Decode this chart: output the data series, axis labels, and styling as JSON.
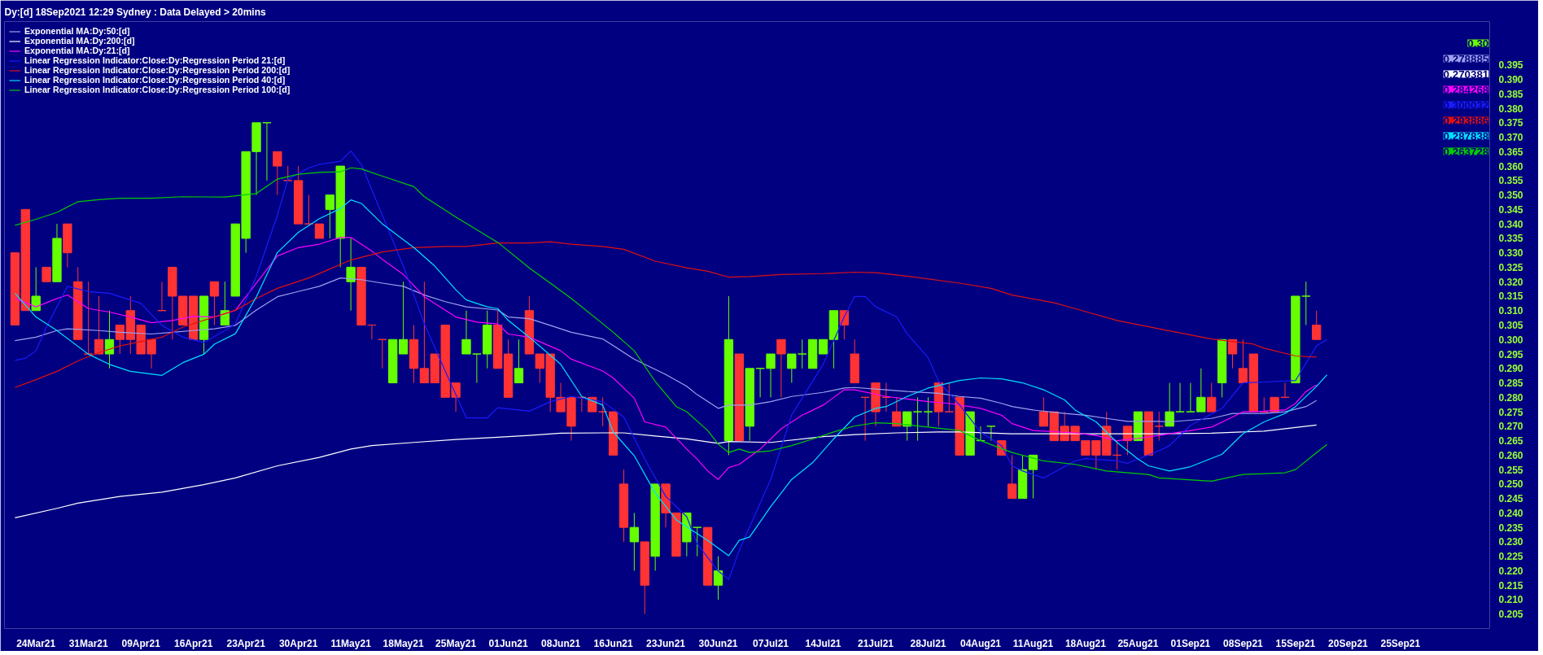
{
  "chart_data": {
    "type": "candlestick",
    "title": "Dy:[d]  18Sep2021 12:29 Sydney : Data Delayed > 20mins",
    "categories": [
      null,
      null,
      "24Mar21",
      null,
      null,
      null,
      null,
      "31Mar21",
      null,
      null,
      null,
      null,
      "09Apr21",
      null,
      null,
      null,
      null,
      "16Apr21",
      null,
      null,
      null,
      null,
      "23Apr21",
      null,
      null,
      null,
      null,
      "30Apr21",
      null,
      null,
      null,
      null,
      "11May21",
      null,
      null,
      null,
      null,
      "18May21",
      null,
      null,
      null,
      null,
      "25May21",
      null,
      null,
      null,
      null,
      "01Jun21",
      null,
      null,
      null,
      null,
      "08Jun21",
      null,
      null,
      null,
      null,
      "16Jun21",
      null,
      null,
      null,
      null,
      "23Jun21",
      null,
      null,
      null,
      null,
      "30Jun21",
      null,
      null,
      null,
      null,
      "07Jul21",
      null,
      null,
      null,
      null,
      "14Jul21",
      null,
      null,
      null,
      null,
      "21Jul21",
      null,
      null,
      null,
      null,
      "28Jul21",
      null,
      null,
      null,
      null,
      "04Aug21",
      null,
      null,
      null,
      null,
      "11Aug21",
      null,
      null,
      null,
      null,
      "18Aug21",
      null,
      null,
      null,
      null,
      "25Aug21",
      null,
      null,
      null,
      null,
      "01Sep21",
      null,
      null,
      null,
      null,
      "08Sep21",
      null,
      null,
      null,
      null,
      "15Sep21",
      null,
      null,
      null,
      null,
      "20Sep21",
      null,
      null,
      null,
      null,
      "25Sep21",
      null,
      null,
      null,
      null,
      null,
      null,
      null,
      null
    ],
    "ohlc": [
      [
        0.33,
        0.33,
        0.305,
        0.305
      ],
      [
        0.345,
        0.345,
        0.31,
        0.31
      ],
      [
        0.31,
        0.325,
        0.31,
        0.315
      ],
      [
        0.325,
        0.325,
        0.32,
        0.32
      ],
      [
        0.32,
        0.34,
        0.32,
        0.335
      ],
      [
        0.34,
        0.34,
        0.325,
        0.33
      ],
      [
        0.32,
        0.325,
        0.3,
        0.3
      ],
      [
        0.295,
        0.32,
        0.295,
        0.295
      ],
      [
        0.3,
        0.315,
        0.295,
        0.295
      ],
      [
        0.295,
        0.31,
        0.29,
        0.3
      ],
      [
        0.305,
        0.305,
        0.295,
        0.3
      ],
      [
        0.31,
        0.315,
        0.295,
        0.3
      ],
      [
        0.305,
        0.305,
        0.295,
        0.295
      ],
      [
        0.3,
        0.3,
        0.29,
        0.295
      ],
      [
        0.31,
        0.32,
        0.31,
        0.31
      ],
      [
        0.325,
        0.325,
        0.3,
        0.315
      ],
      [
        0.315,
        0.315,
        0.305,
        0.305
      ],
      [
        0.315,
        0.315,
        0.3,
        0.3
      ],
      [
        0.3,
        0.315,
        0.295,
        0.315
      ],
      [
        0.32,
        0.32,
        0.305,
        0.315
      ],
      [
        0.305,
        0.32,
        0.305,
        0.31
      ],
      [
        0.315,
        0.34,
        0.315,
        0.34
      ],
      [
        0.335,
        0.365,
        0.33,
        0.365
      ],
      [
        0.365,
        0.375,
        0.35,
        0.375
      ],
      [
        0.375,
        0.375,
        0.355,
        0.375
      ],
      [
        0.365,
        0.365,
        0.35,
        0.36
      ],
      [
        0.355,
        0.36,
        0.355,
        0.355
      ],
      [
        0.355,
        0.36,
        0.34,
        0.34
      ],
      [
        0.34,
        0.35,
        0.34,
        0.34
      ],
      [
        0.34,
        0.34,
        0.335,
        0.335
      ],
      [
        0.345,
        0.35,
        0.335,
        0.35
      ],
      [
        0.335,
        0.36,
        0.325,
        0.36
      ],
      [
        0.32,
        0.335,
        0.31,
        0.325
      ],
      [
        0.325,
        0.325,
        0.305,
        0.305
      ],
      [
        0.305,
        0.305,
        0.3,
        0.305
      ],
      [
        0.3,
        0.3,
        0.29,
        0.3
      ],
      [
        0.285,
        0.3,
        0.285,
        0.3
      ],
      [
        0.295,
        0.32,
        0.295,
        0.3
      ],
      [
        0.3,
        0.305,
        0.285,
        0.29
      ],
      [
        0.29,
        0.32,
        0.285,
        0.285
      ],
      [
        0.295,
        0.295,
        0.285,
        0.285
      ],
      [
        0.305,
        0.305,
        0.28,
        0.28
      ],
      [
        0.285,
        0.285,
        0.275,
        0.28
      ],
      [
        0.295,
        0.31,
        0.295,
        0.3
      ],
      [
        0.295,
        0.295,
        0.285,
        0.295
      ],
      [
        0.295,
        0.31,
        0.29,
        0.305
      ],
      [
        0.305,
        0.31,
        0.29,
        0.29
      ],
      [
        0.295,
        0.3,
        0.28,
        0.28
      ],
      [
        0.285,
        0.3,
        0.285,
        0.29
      ],
      [
        0.31,
        0.315,
        0.295,
        0.295
      ],
      [
        0.295,
        0.295,
        0.285,
        0.29
      ],
      [
        0.295,
        0.295,
        0.275,
        0.28
      ],
      [
        0.28,
        0.285,
        0.275,
        0.275
      ],
      [
        0.28,
        0.28,
        0.265,
        0.27
      ],
      [
        0.28,
        0.28,
        0.275,
        0.28
      ],
      [
        0.28,
        0.28,
        0.275,
        0.275
      ],
      [
        0.275,
        0.28,
        0.27,
        0.275
      ],
      [
        0.275,
        0.275,
        0.26,
        0.26
      ],
      [
        0.25,
        0.255,
        0.23,
        0.235
      ],
      [
        0.23,
        0.24,
        0.22,
        0.235
      ],
      [
        0.23,
        0.23,
        0.205,
        0.215
      ],
      [
        0.225,
        0.25,
        0.22,
        0.25
      ],
      [
        0.25,
        0.25,
        0.235,
        0.24
      ],
      [
        0.24,
        0.24,
        0.225,
        0.225
      ],
      [
        0.23,
        0.24,
        0.225,
        0.24
      ],
      [
        0.235,
        0.235,
        0.225,
        0.235
      ],
      [
        0.235,
        0.235,
        0.215,
        0.215
      ],
      [
        0.215,
        0.225,
        0.21,
        0.22
      ],
      [
        0.265,
        0.315,
        0.26,
        0.3
      ],
      [
        0.295,
        0.295,
        0.265,
        0.265
      ],
      [
        0.27,
        0.29,
        0.265,
        0.29
      ],
      [
        0.29,
        0.29,
        0.28,
        0.29
      ],
      [
        0.29,
        0.295,
        0.28,
        0.295
      ],
      [
        0.3,
        0.3,
        0.28,
        0.295
      ],
      [
        0.29,
        0.295,
        0.285,
        0.295
      ],
      [
        0.295,
        0.3,
        0.29,
        0.295
      ],
      [
        0.29,
        0.3,
        0.29,
        0.3
      ],
      [
        0.295,
        0.3,
        0.295,
        0.3
      ],
      [
        0.3,
        0.31,
        0.29,
        0.31
      ],
      [
        0.31,
        0.31,
        0.3,
        0.305
      ],
      [
        0.295,
        0.3,
        0.285,
        0.285
      ],
      [
        0.28,
        0.28,
        0.265,
        0.28
      ],
      [
        0.285,
        0.285,
        0.27,
        0.275
      ],
      [
        0.28,
        0.285,
        0.275,
        0.28
      ],
      [
        0.275,
        0.28,
        0.27,
        0.27
      ],
      [
        0.27,
        0.275,
        0.265,
        0.275
      ],
      [
        0.275,
        0.28,
        0.265,
        0.275
      ],
      [
        0.275,
        0.28,
        0.27,
        0.275
      ],
      [
        0.285,
        0.285,
        0.27,
        0.275
      ],
      [
        0.275,
        0.285,
        0.275,
        0.275
      ],
      [
        0.28,
        0.28,
        0.26,
        0.26
      ],
      [
        0.26,
        0.275,
        0.26,
        0.275
      ],
      [
        0.265,
        0.27,
        0.265,
        0.265
      ],
      [
        0.27,
        0.27,
        0.265,
        0.27
      ],
      [
        0.265,
        0.265,
        0.26,
        0.26
      ],
      [
        0.25,
        0.26,
        0.245,
        0.245
      ],
      [
        0.245,
        0.26,
        0.245,
        0.255
      ],
      [
        0.255,
        0.26,
        0.245,
        0.26
      ],
      [
        0.275,
        0.28,
        0.27,
        0.27
      ],
      [
        0.275,
        0.275,
        0.265,
        0.265
      ],
      [
        0.27,
        0.275,
        0.265,
        0.265
      ],
      [
        0.27,
        0.27,
        0.265,
        0.265
      ],
      [
        0.265,
        0.265,
        0.26,
        0.26
      ],
      [
        0.265,
        0.265,
        0.255,
        0.26
      ],
      [
        0.27,
        0.275,
        0.26,
        0.26
      ],
      [
        0.26,
        0.265,
        0.255,
        0.26
      ],
      [
        0.27,
        0.27,
        0.26,
        0.265
      ],
      [
        0.265,
        0.275,
        0.265,
        0.275
      ],
      [
        0.275,
        0.275,
        0.26,
        0.26
      ],
      [
        0.27,
        0.275,
        0.265,
        0.27
      ],
      [
        0.27,
        0.285,
        0.27,
        0.275
      ],
      [
        0.275,
        0.285,
        0.275,
        0.275
      ],
      [
        0.275,
        0.285,
        0.275,
        0.275
      ],
      [
        0.275,
        0.29,
        0.275,
        0.28
      ],
      [
        0.28,
        0.285,
        0.275,
        0.275
      ],
      [
        0.285,
        0.3,
        0.28,
        0.3
      ],
      [
        0.3,
        0.3,
        0.29,
        0.295
      ],
      [
        0.29,
        0.3,
        0.285,
        0.285
      ],
      [
        0.295,
        0.295,
        0.275,
        0.275
      ],
      [
        0.275,
        0.28,
        0.275,
        0.275
      ],
      [
        0.28,
        0.28,
        0.275,
        0.275
      ],
      [
        0.28,
        0.285,
        0.28,
        0.28
      ],
      [
        0.285,
        0.315,
        0.285,
        0.315
      ],
      [
        0.315,
        0.32,
        0.305,
        0.315
      ],
      [
        0.305,
        0.31,
        0.3,
        0.3
      ],
      null,
      null,
      null,
      null,
      null,
      null,
      null,
      null,
      null,
      null,
      null,
      null,
      null,
      null,
      null,
      null
    ],
    "colors": [
      "#ff3333",
      "#ff3333",
      "#66ff00",
      "#ff3333",
      "#66ff00",
      "#ff3333",
      "#ff3333",
      "#ff3333",
      "#ff3333",
      "#66ff00",
      "#ff3333",
      "#ff3333",
      "#ff3333",
      "#ff3333",
      "#ff3333",
      "#ff3333",
      "#ff3333",
      "#ff3333",
      "#66ff00",
      "#ff3333",
      "#66ff00",
      "#66ff00",
      "#66ff00",
      "#66ff00",
      "#66ff00",
      "#ff3333",
      "#ff3333",
      "#ff3333",
      "#ff3333",
      "#ff3333",
      "#66ff00",
      "#66ff00",
      "#66ff00",
      "#ff3333",
      "#ff3333",
      "#ff3333",
      "#66ff00",
      "#66ff00",
      "#ff3333",
      "#ff3333",
      "#ff3333",
      "#ff3333",
      "#ff3333",
      "#66ff00",
      "#66ff00",
      "#66ff00",
      "#ff3333",
      "#ff3333",
      "#66ff00",
      "#ff3333",
      "#ff3333",
      "#ff3333",
      "#ff3333",
      "#ff3333",
      "#ff3333",
      "#ff3333",
      "#ff3333",
      "#ff3333",
      "#ff3333",
      "#66ff00",
      "#ff3333",
      "#66ff00",
      "#ff3333",
      "#ff3333",
      "#66ff00",
      "#66ff00",
      "#ff3333",
      "#66ff00",
      "#66ff00",
      "#ff3333",
      "#66ff00",
      "#66ff00",
      "#66ff00",
      "#ff3333",
      "#66ff00",
      "#66ff00",
      "#66ff00",
      "#66ff00",
      "#66ff00",
      "#ff3333",
      "#ff3333",
      "#ff3333",
      "#ff3333",
      "#ff3333",
      "#ff3333",
      "#66ff00",
      "#66ff00",
      "#66ff00",
      "#ff3333",
      "#ff3333",
      "#ff3333",
      "#66ff00",
      "#66ff00",
      "#66ff00",
      "#ff3333",
      "#ff3333",
      "#66ff00",
      "#66ff00",
      "#ff3333",
      "#ff3333",
      "#ff3333",
      "#ff3333",
      "#ff3333",
      "#ff3333",
      "#ff3333",
      "#ff3333",
      "#ff3333",
      "#66ff00",
      "#ff3333",
      "#ff3333",
      "#66ff00",
      "#66ff00",
      "#66ff00",
      "#66ff00",
      "#ff3333",
      "#66ff00",
      "#ff3333",
      "#ff3333",
      "#ff3333",
      "#ff3333",
      "#ff3333",
      "#ff3333",
      "#66ff00",
      "#66ff00",
      "#ff3333",
      null,
      null,
      null,
      null,
      null,
      null,
      null,
      null,
      null,
      null,
      null,
      null,
      null,
      null,
      null,
      null
    ],
    "series": [
      {
        "name": "Exponential MA:Dy:50:[d]",
        "type": "line",
        "color": "#a0a0f0",
        "values": [
          0.2996,
          null,
          0.3008,
          null,
          0.3031,
          0.3037,
          null,
          null,
          0.3031,
          null,
          0.3025,
          null,
          null,
          0.3019,
          null,
          0.3025,
          null,
          0.3031,
          null,
          0.3037,
          null,
          0.3049,
          null,
          0.3102,
          null,
          0.3148,
          null,
          0.3166,
          null,
          0.3184,
          null,
          0.3213,
          null,
          0.3207,
          null,
          0.3195,
          null,
          0.3184,
          null,
          0.3154,
          null,
          0.3131,
          null,
          0.3113,
          null,
          null,
          0.3102,
          0.3078,
          null,
          0.3072,
          null,
          0.3049,
          null,
          0.3025,
          null,
          null,
          0.3002,
          null,
          null,
          0.2932,
          null,
          null,
          0.2879,
          null,
          0.2838,
          0.2809,
          null,
          0.2762,
          0.2773,
          null,
          0.2773,
          null,
          0.2785,
          null,
          0.2803,
          null,
          null,
          0.2817,
          null,
          0.2832,
          0.2834,
          null,
          null,
          0.2826,
          null,
          0.282,
          null,
          null,
          0.2814,
          null,
          0.2803,
          null,
          0.2797,
          null,
          0.2779,
          0.2768,
          null,
          0.2756,
          null,
          null,
          0.2744,
          null,
          0.2738,
          null,
          0.2727,
          null,
          0.2717,
          null,
          null,
          0.2717,
          0.2715,
          null,
          null,
          null,
          0.2727,
          null,
          0.2744,
          null,
          null,
          0.2744,
          null,
          0.275,
          null,
          0.2768,
          0.2789,
          null,
          null,
          null,
          null,
          null,
          null,
          null,
          null,
          null,
          null,
          null,
          null,
          null,
          null,
          null,
          null
        ]
      },
      {
        "name": "Exponential MA:Dy:200:[d]",
        "type": "line",
        "color": "#ffffff",
        "values": [
          0.2383,
          null,
          null,
          null,
          0.2416,
          null,
          0.2434,
          null,
          null,
          null,
          0.2457,
          null,
          null,
          null,
          0.2472,
          null,
          null,
          null,
          0.2498,
          null,
          null,
          0.2521,
          null,
          null,
          null,
          0.2563,
          null,
          null,
          null,
          0.2592,
          null,
          null,
          0.2621,
          null,
          0.2633,
          null,
          null,
          null,
          0.2644,
          null,
          null,
          null,
          0.2654,
          null,
          null,
          null,
          0.2662,
          null,
          null,
          0.2668,
          null,
          null,
          0.2676,
          null,
          null,
          null,
          0.2677,
          null,
          0.2677,
          null,
          null,
          0.2666,
          null,
          null,
          0.2656,
          null,
          null,
          0.2641,
          0.2647,
          null,
          null,
          null,
          0.2644,
          null,
          null,
          null,
          null,
          0.2664,
          null,
          null,
          0.2671,
          null,
          null,
          null,
          0.2677,
          null,
          null,
          null,
          0.268,
          null,
          0.268,
          null,
          null,
          null,
          null,
          0.2674,
          null,
          null,
          null,
          null,
          null,
          null,
          0.2674,
          null,
          null,
          null,
          null,
          null,
          null,
          0.2674,
          null,
          null,
          null,
          null,
          0.2676,
          null,
          null,
          null,
          null,
          0.2683,
          null,
          null,
          null,
          null,
          0.2704,
          null,
          null,
          null,
          null,
          null,
          null,
          null,
          null,
          null,
          null,
          null,
          null,
          null,
          null,
          null,
          null
        ]
      },
      {
        "name": "Exponential MA:Dy:21:[d]",
        "type": "line",
        "color": "#ff00ff",
        "values": [
          0.3142,
          null,
          0.3113,
          null,
          0.3142,
          0.3154,
          null,
          0.3107,
          null,
          0.3095,
          null,
          0.3078,
          null,
          0.3058,
          null,
          0.3066,
          null,
          0.308,
          null,
          0.3078,
          null,
          0.3101,
          null,
          0.3195,
          null,
          0.3289,
          null,
          0.3318,
          null,
          0.333,
          null,
          0.3353,
          0.3353,
          null,
          0.3306,
          0.3277,
          null,
          0.3225,
          null,
          0.3148,
          null,
          null,
          0.3078,
          null,
          0.306,
          null,
          0.3054,
          0.3019,
          null,
          0.3008,
          null,
          null,
          0.2961,
          0.2932,
          null,
          null,
          0.2891,
          0.2867,
          null,
          0.2797,
          0.2715,
          null,
          0.2697,
          null,
          0.2621,
          0.2586,
          0.2545,
          0.2516,
          0.2557,
          0.2568,
          null,
          0.2621,
          null,
          0.2691,
          null,
          0.2738,
          null,
          0.2773,
          null,
          0.2826,
          0.2826,
          null,
          null,
          0.2803,
          null,
          0.2794,
          null,
          0.2785,
          null,
          0.2779,
          null,
          null,
          0.2762,
          null,
          0.2738,
          0.2709,
          null,
          0.2685,
          null,
          null,
          null,
          0.2677,
          null,
          0.2668,
          null,
          0.265,
          null,
          0.2658,
          null,
          0.2668,
          0.2674,
          null,
          0.2685,
          null,
          0.2697,
          null,
          0.2732,
          0.275,
          null,
          0.2752,
          null,
          0.2756,
          0.2779,
          0.282,
          0.2843,
          null,
          null,
          null,
          null,
          null,
          null,
          null,
          null,
          null,
          null,
          null,
          null,
          null,
          null,
          null,
          null
        ]
      },
      {
        "name": "Linear Regression Indicator:Close:Dy:Regression Period 21:[d]",
        "type": "line",
        "color": "#1a1aff",
        "values": [
          0.2928,
          0.2935,
          0.2961,
          0.3043,
          null,
          0.3184,
          null,
          0.3166,
          null,
          0.316,
          0.3148,
          null,
          0.3125,
          null,
          0.3049,
          null,
          0.3008,
          null,
          0.299,
          null,
          0.3031,
          0.3054,
          null,
          0.3219,
          null,
          0.343,
          0.3553,
          null,
          0.3594,
          0.3606,
          null,
          0.3617,
          0.3652,
          0.3605,
          null,
          0.343,
          null,
          0.3254,
          null,
          0.3054,
          null,
          0.289,
          null,
          0.2729,
          null,
          0.2729,
          0.2764,
          null,
          null,
          0.2752,
          null,
          0.2785,
          null,
          0.2803,
          null,
          null,
          0.2785,
          null,
          0.2732,
          null,
          0.2586,
          null,
          0.2457,
          null,
          0.2387,
          0.2293,
          null,
          0.2199,
          0.217,
          0.227,
          null,
          null,
          0.2516,
          null,
          0.2739,
          null,
          null,
          0.2914,
          null,
          0.3078,
          0.3149,
          0.3149,
          0.3113,
          null,
          0.3078,
          0.302,
          null,
          0.2937,
          0.2855,
          null,
          0.2773,
          null,
          0.268,
          null,
          0.2633,
          0.2563,
          0.2545,
          null,
          0.2521,
          null,
          null,
          0.258,
          0.2588,
          null,
          null,
          0.258,
          0.2572,
          null,
          null,
          0.2615,
          0.2633,
          null,
          0.2703,
          null,
          null,
          0.2762,
          null,
          0.285,
          null,
          0.2853,
          null,
          null,
          0.2858,
          null,
          0.2978,
          0.3,
          null,
          null,
          null,
          null,
          null,
          null,
          null,
          null,
          null,
          null,
          null,
          null,
          null,
          null,
          null
        ]
      },
      {
        "name": "Linear Regression Indicator:Close:Dy:Regression Period 200:[d]",
        "type": "line",
        "color": "#e01010",
        "values": [
          0.2834,
          null,
          0.2861,
          null,
          0.289,
          null,
          0.2926,
          null,
          0.2955,
          null,
          0.2978,
          null,
          null,
          null,
          0.3008,
          null,
          0.3043,
          null,
          null,
          0.3078,
          null,
          0.3101,
          null,
          0.3142,
          null,
          0.3177,
          null,
          null,
          0.3213,
          null,
          0.3244,
          null,
          0.3275,
          null,
          null,
          0.3303,
          null,
          null,
          0.3318,
          null,
          null,
          0.3322,
          null,
          0.3322,
          null,
          null,
          0.3334,
          null,
          null,
          0.3334,
          null,
          0.3338,
          null,
          0.333,
          null,
          null,
          0.3322,
          null,
          0.3312,
          null,
          null,
          0.3271,
          null,
          null,
          0.3248,
          null,
          0.3236,
          null,
          0.3216,
          null,
          0.3218,
          null,
          null,
          0.3225,
          null,
          null,
          null,
          0.3228,
          null,
          null,
          0.3233,
          null,
          0.3231,
          null,
          null,
          0.3219,
          null,
          null,
          null,
          null,
          0.3195,
          null,
          null,
          0.3177,
          null,
          0.3154,
          null,
          null,
          null,
          0.3127,
          null,
          0.3107,
          null,
          null,
          null,
          0.3066,
          null,
          null,
          null,
          0.3037,
          null,
          null,
          null,
          null,
          0.3002,
          null,
          null,
          null,
          0.2984,
          0.297,
          null,
          null,
          0.2943,
          null,
          0.2939,
          null,
          null,
          null,
          null,
          null,
          null,
          null,
          null,
          null,
          null,
          null,
          null,
          null,
          null,
          null,
          null
        ]
      },
      {
        "name": "Linear Regression Indicator:Close:Dy:Regression Period 40:[d]",
        "type": "line",
        "color": "#00e0ff",
        "values": [
          0.316,
          null,
          0.3078,
          null,
          0.3031,
          null,
          null,
          0.2949,
          null,
          0.2914,
          null,
          0.289,
          null,
          null,
          0.2876,
          null,
          0.292,
          null,
          0.2949,
          0.2984,
          null,
          0.302,
          null,
          0.3148,
          null,
          0.3301,
          null,
          0.3371,
          null,
          0.3418,
          null,
          0.3453,
          0.3483,
          0.3471,
          null,
          0.34,
          null,
          null,
          0.3318,
          null,
          0.3254,
          null,
          0.3172,
          0.3137,
          null,
          0.3113,
          0.3107,
          0.3066,
          null,
          0.3008,
          null,
          null,
          0.2914,
          null,
          0.2803,
          null,
          0.2773,
          0.268,
          null,
          0.2598,
          null,
          0.2469,
          null,
          0.2376,
          0.2352,
          null,
          0.2305,
          null,
          0.2252,
          0.2305,
          0.2317,
          null,
          0.2422,
          null,
          0.2516,
          null,
          0.2574,
          null,
          0.2656,
          null,
          0.2732,
          null,
          0.2762,
          0.2768,
          null,
          0.2803,
          null,
          0.2832,
          null,
          null,
          0.2858,
          null,
          0.2867,
          null,
          0.2864,
          null,
          0.285,
          null,
          0.2826,
          null,
          0.2791,
          0.2756,
          null,
          0.2715,
          null,
          0.2644,
          null,
          0.2586,
          0.2563,
          null,
          0.2545,
          null,
          0.256,
          null,
          null,
          0.2603,
          null,
          0.2674,
          null,
          0.2715,
          null,
          0.2744,
          0.2768,
          null,
          0.2838,
          0.2878,
          null,
          null,
          null,
          null,
          null,
          null,
          null,
          null,
          null,
          null,
          null,
          null,
          null,
          null,
          null
        ]
      },
      {
        "name": "Linear Regression Indicator:Close:Dy:Regression Period 100:[d]",
        "type": "line",
        "color": "#00cc00",
        "values": [
          0.3395,
          null,
          0.3416,
          null,
          0.344,
          null,
          0.3477,
          null,
          0.3484,
          null,
          0.3489,
          null,
          null,
          0.3489,
          null,
          null,
          0.3494,
          null,
          null,
          null,
          0.3493,
          null,
          null,
          0.3505,
          null,
          0.3555,
          null,
          0.3572,
          null,
          0.3578,
          null,
          0.358,
          0.3594,
          0.359,
          null,
          0.3565,
          null,
          null,
          0.3529,
          0.3494,
          null,
          null,
          0.3424,
          null,
          null,
          null,
          0.3336,
          null,
          null,
          0.3248,
          null,
          null,
          null,
          0.3142,
          null,
          null,
          null,
          0.3025,
          null,
          0.2961,
          null,
          0.2855,
          null,
          0.2768,
          0.275,
          null,
          0.2685,
          0.2638,
          0.2609,
          0.2621,
          0.2609,
          null,
          0.2615,
          null,
          0.2633,
          null,
          0.2656,
          null,
          0.268,
          null,
          0.2701,
          null,
          0.2712,
          null,
          0.2709,
          null,
          null,
          0.2697,
          null,
          null,
          0.2685,
          null,
          0.265,
          null,
          null,
          0.2609,
          null,
          null,
          0.258,
          null,
          null,
          0.2568,
          null,
          null,
          0.2545,
          null,
          null,
          null,
          0.2533,
          0.2521,
          null,
          null,
          null,
          null,
          0.251,
          null,
          null,
          0.2533,
          null,
          null,
          null,
          0.2539,
          0.255,
          null,
          0.2609,
          0.2637,
          null,
          null,
          null,
          null,
          null,
          null,
          null,
          null,
          null,
          null,
          null,
          null,
          null,
          null,
          null
        ]
      }
    ],
    "annotations": [
      "0.30",
      "0.278885",
      "0.270381",
      "0.284268",
      "0.300032",
      "0.293886",
      "0.287838",
      "0.263728"
    ],
    "ylim": [
      0.2,
      0.41
    ],
    "yticks": [
      0.205,
      {
        "value": 0.21,
        "label": "0.210"
      },
      0.215,
      {
        "value": 0.22,
        "label": "0.220"
      },
      0.225,
      {
        "value": 0.23,
        "label": "0.230"
      },
      0.235,
      {
        "value": 0.24,
        "label": "0.240"
      },
      0.245,
      {
        "value": 0.25,
        "label": "0.250"
      },
      0.255,
      {
        "value": 0.26,
        "label": "0.260"
      },
      0.265,
      {
        "value": 0.27,
        "label": "0.270"
      },
      0.275,
      {
        "value": 0.28,
        "label": "0.280"
      },
      0.285,
      {
        "value": 0.29,
        "label": "0.290"
      },
      0.295,
      {
        "value": 0.3,
        "label": "0.300"
      },
      0.305,
      {
        "value": 0.31,
        "label": "0.310"
      },
      0.315,
      {
        "value": 0.32,
        "label": "0.320"
      },
      0.325,
      {
        "value": 0.33,
        "label": "0.330"
      },
      0.335,
      {
        "value": 0.34,
        "label": "0.340"
      },
      0.345,
      {
        "value": 0.35,
        "label": "0.350"
      },
      0.355,
      {
        "value": 0.36,
        "label": "0.360"
      },
      0.365,
      {
        "value": 0.37,
        "label": "0.370"
      },
      0.375,
      {
        "value": 0.38,
        "label": "0.380"
      },
      0.385,
      {
        "value": 0.39,
        "label": "0.390"
      },
      0.395
    ],
    "legend": "top left"
  }
}
